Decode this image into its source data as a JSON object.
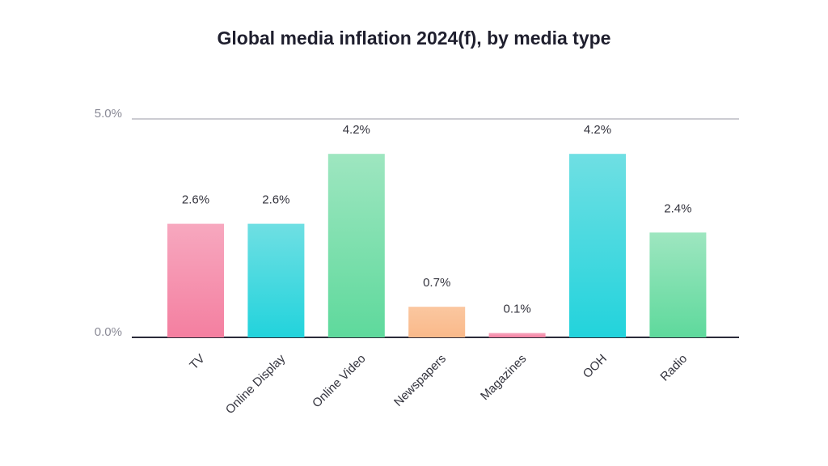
{
  "chart_data": {
    "type": "bar",
    "title": "Global media inflation 2024(f), by media type",
    "xlabel": "",
    "ylabel": "",
    "ylim": [
      0,
      5.0
    ],
    "y_ticks": [
      {
        "value": 0,
        "label": "0.0%"
      },
      {
        "value": 5.0,
        "label": "5.0%"
      }
    ],
    "grid": false,
    "categories": [
      "TV",
      "Online Display",
      "Online Video",
      "Newspapers",
      "Magazines",
      "OOH",
      "Radio"
    ],
    "values": [
      2.6,
      2.6,
      4.2,
      0.7,
      0.1,
      4.2,
      2.4
    ],
    "value_labels": [
      "2.6%",
      "2.6%",
      "4.2%",
      "0.7%",
      "0.1%",
      "4.2%",
      "2.4%"
    ],
    "bar_colors": [
      {
        "top": "#f7a8bf",
        "bottom": "#f47fa0"
      },
      {
        "top": "#6fdfe3",
        "bottom": "#22d3dc"
      },
      {
        "top": "#9ee6c0",
        "bottom": "#5ed99c"
      },
      {
        "top": "#fbc7a0",
        "bottom": "#f9b98a"
      },
      {
        "top": "#f7a8bf",
        "bottom": "#f47fa0"
      },
      {
        "top": "#6fdfe3",
        "bottom": "#22d3dc"
      },
      {
        "top": "#9ee6c0",
        "bottom": "#5ed99c"
      }
    ],
    "axis_color": "#2b2b3a"
  }
}
